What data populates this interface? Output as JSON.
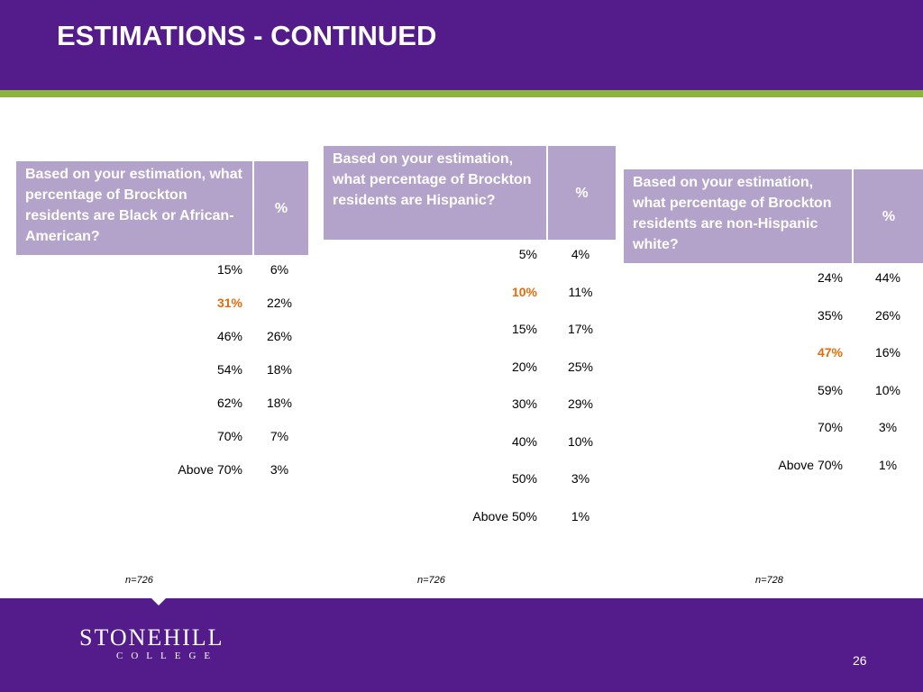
{
  "slide": {
    "title": "ESTIMATIONS - CONTINUED",
    "page_number": "26"
  },
  "logo": {
    "line1": "STONEHILL",
    "line2": "COLLEGE"
  },
  "colors": {
    "header_band": "#541b8b",
    "accent_line": "#8bb53c",
    "table_header": "#b3a2c9",
    "highlight": "#e36c0a"
  },
  "tables": [
    {
      "question": "Based on your estimation, what percentage of Brockton residents are Black or African-American?",
      "pct_header": "%",
      "rows": [
        {
          "estimate": "15%",
          "pct": "6%"
        },
        {
          "estimate": "31%",
          "pct": "22%",
          "highlight": true
        },
        {
          "estimate": "46%",
          "pct": "26%"
        },
        {
          "estimate": "54%",
          "pct": "18%"
        },
        {
          "estimate": "62%",
          "pct": "18%"
        },
        {
          "estimate": "70%",
          "pct": "7%"
        },
        {
          "estimate": "Above 70%",
          "pct": "3%"
        }
      ],
      "n": "n=726"
    },
    {
      "question": "Based on your estimation, what percentage of Brockton residents are Hispanic?",
      "pct_header": "%",
      "rows": [
        {
          "estimate": "5%",
          "pct": "4%"
        },
        {
          "estimate": "10%",
          "pct": "11%",
          "highlight": true
        },
        {
          "estimate": "15%",
          "pct": "17%"
        },
        {
          "estimate": "20%",
          "pct": "25%"
        },
        {
          "estimate": "30%",
          "pct": "29%"
        },
        {
          "estimate": "40%",
          "pct": "10%"
        },
        {
          "estimate": "50%",
          "pct": "3%"
        },
        {
          "estimate": "Above 50%",
          "pct": "1%"
        }
      ],
      "n": "n=726"
    },
    {
      "question": "Based on your estimation, what percentage of Brockton residents are non-Hispanic white?",
      "pct_header": "%",
      "rows": [
        {
          "estimate": "24%",
          "pct": "44%"
        },
        {
          "estimate": "35%",
          "pct": "26%"
        },
        {
          "estimate": "47%",
          "pct": "16%",
          "highlight": true
        },
        {
          "estimate": "59%",
          "pct": "10%"
        },
        {
          "estimate": "70%",
          "pct": "3%"
        },
        {
          "estimate": "Above 70%",
          "pct": "1%"
        }
      ],
      "n": "n=728"
    }
  ]
}
